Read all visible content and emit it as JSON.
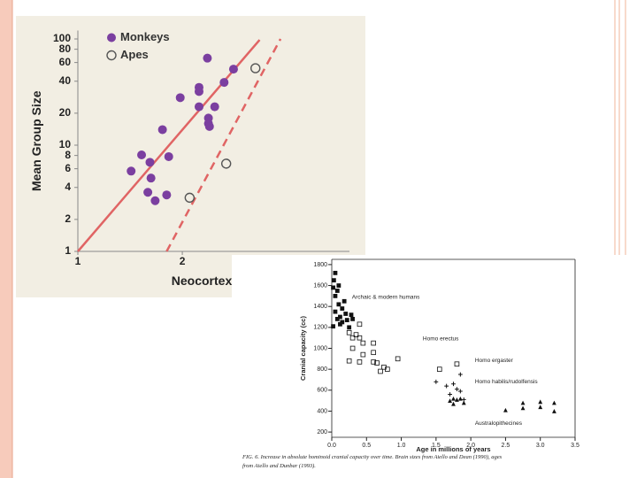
{
  "chart_data": [
    {
      "type": "scatter",
      "ylabel": "Mean Group Size",
      "xlabel": "Neocortex",
      "log_y": true,
      "legend": "upper left",
      "xlim": [
        1,
        3.6
      ],
      "ylim": [
        1,
        120
      ],
      "xticks": [
        1,
        2
      ],
      "yticks": [
        1,
        2,
        4,
        6,
        8,
        10,
        20,
        40,
        60,
        80,
        100
      ],
      "series": [
        {
          "name": "Monkeys",
          "color": "#7b3fa0",
          "marker": "circle-filled",
          "x": [
            2.49,
            2.4,
            2.24,
            2.16,
            2.16,
            1.98,
            2.16,
            2.31,
            2.25,
            2.25,
            2.26,
            1.81,
            1.61,
            1.69,
            1.87,
            1.51,
            1.7,
            1.67,
            1.74,
            1.85
          ],
          "values": [
            52,
            39,
            66,
            35,
            32,
            28,
            23,
            23,
            18,
            16,
            15,
            14,
            8.1,
            6.9,
            7.8,
            5.7,
            4.9,
            3.6,
            3.0,
            3.4
          ]
        },
        {
          "name": "Apes",
          "color": "#555555",
          "marker": "circle-open",
          "x": [
            2.7,
            2.42,
            2.07
          ],
          "values": [
            53,
            6.7,
            3.2
          ]
        }
      ],
      "lines": [
        {
          "x": [
            1,
            2.74
          ],
          "y": [
            1,
            98
          ],
          "color": "#e06464",
          "dash": false
        },
        {
          "x": [
            1.85,
            2.94
          ],
          "y": [
            1,
            100
          ],
          "color": "#e06464",
          "dash": true
        }
      ]
    },
    {
      "type": "scatter",
      "ylabel": "Cranial capacity (cc)",
      "xlabel": "Age in millions of years",
      "caption": [
        "FIG. 6. Increase in absolute hominoid cranial capacity over time. Brain sizes from Aiello and Dean (1990), ages",
        "from Aiello and Dunbar (1993)."
      ],
      "xlim": [
        0,
        3.5
      ],
      "ylim": [
        150,
        1850
      ],
      "xticks": [
        {
          "value": 0,
          "label": "0.0"
        },
        0.5,
        {
          "value": 1,
          "label": "1.0"
        },
        1.5,
        {
          "value": 2,
          "label": "2.0"
        },
        2.5,
        {
          "value": 3,
          "label": "3.0"
        },
        3.5
      ],
      "yticks": [
        200,
        400,
        600,
        800,
        1000,
        1200,
        1400,
        1600,
        1800
      ],
      "annotations": [
        {
          "text": "Archaic & modern humans",
          "x": 0.29,
          "y": 1490
        },
        {
          "text": "Homo erectus",
          "x": 1.31,
          "y": 1090
        },
        {
          "text": "Homo ergaster",
          "x": 2.06,
          "y": 885
        },
        {
          "text": "Homo habilis/rudolfensis",
          "x": 2.06,
          "y": 680
        },
        {
          "text": "Australopithecines",
          "x": 2.06,
          "y": 285
        }
      ],
      "series": [
        {
          "color": "#111111",
          "marker": "square-filled",
          "x": [
            0.02,
            0.03,
            0.05,
            0.05,
            0.08,
            0.1,
            0.1,
            0.12,
            0.15,
            0.15,
            0.18,
            0.2,
            0.22,
            0.25,
            0.28,
            0.3,
            0.05,
            0.08,
            0.02,
            0.12
          ],
          "values": [
            1580,
            1650,
            1720,
            1500,
            1550,
            1600,
            1420,
            1300,
            1380,
            1250,
            1450,
            1330,
            1270,
            1200,
            1320,
            1280,
            1350,
            1280,
            1210,
            1230
          ]
        },
        {
          "color": "#111111",
          "marker": "square-open",
          "x": [
            0.25,
            0.3,
            0.4,
            0.4,
            0.45,
            0.3,
            0.25,
            0.4,
            0.45,
            0.6,
            0.6,
            0.65,
            0.7,
            0.75,
            0.8,
            0.95,
            0.6,
            0.35,
            1.55,
            1.8
          ],
          "values": [
            1150,
            1100,
            1230,
            1100,
            1050,
            1000,
            880,
            870,
            940,
            1050,
            960,
            860,
            780,
            820,
            800,
            900,
            870,
            1130,
            800,
            850
          ]
        },
        {
          "color": "#111111",
          "marker": "plus",
          "x": [
            1.5,
            1.65,
            1.75,
            1.85,
            1.8,
            1.85,
            1.9,
            1.7
          ],
          "values": [
            680,
            640,
            660,
            750,
            610,
            590,
            510,
            560
          ]
        },
        {
          "color": "#111111",
          "marker": "triangle",
          "x": [
            1.7,
            1.75,
            1.8,
            1.85,
            1.9,
            2.5,
            2.75,
            2.75,
            3.0,
            3.0,
            3.2,
            3.2,
            1.75
          ],
          "values": [
            500,
            520,
            510,
            520,
            480,
            410,
            430,
            480,
            490,
            440,
            480,
            400,
            470
          ]
        }
      ]
    }
  ]
}
